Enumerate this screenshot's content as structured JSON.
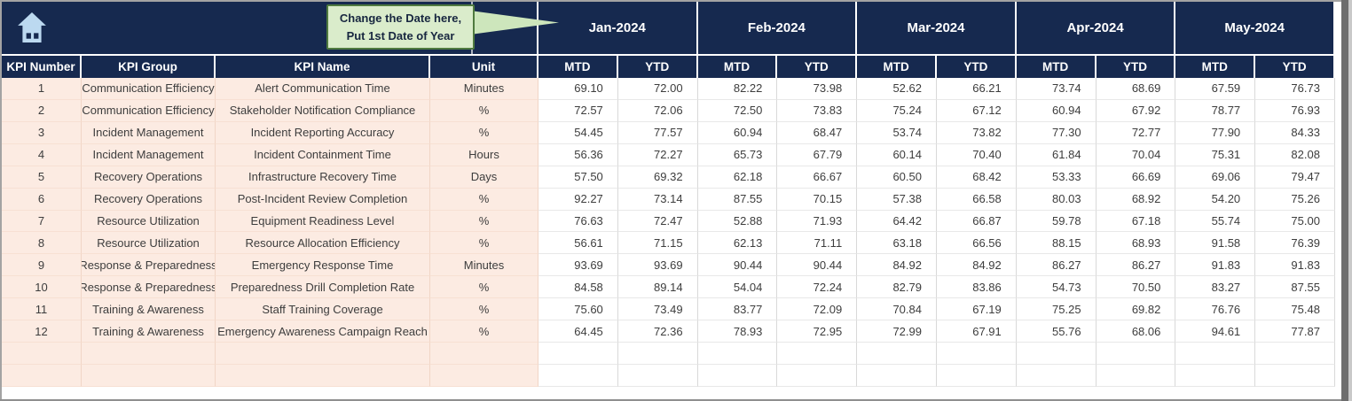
{
  "callout": {
    "line1": "Change the Date here,",
    "line2": "Put 1st Date of Year"
  },
  "months": [
    "Jan-2024",
    "Feb-2024",
    "Mar-2024",
    "Apr-2024",
    "May-2024"
  ],
  "subheaders": {
    "mtd": "MTD",
    "ytd": "YTD"
  },
  "table": {
    "columns": [
      "KPI Number",
      "KPI Group",
      "KPI Name",
      "Unit"
    ],
    "rows": [
      {
        "number": "1",
        "group": "Communication Efficiency",
        "name": "Alert Communication Time",
        "unit": "Minutes",
        "values": [
          [
            "69.10",
            "72.00"
          ],
          [
            "82.22",
            "73.98"
          ],
          [
            "52.62",
            "66.21"
          ],
          [
            "73.74",
            "68.69"
          ],
          [
            "67.59",
            "76.73"
          ]
        ]
      },
      {
        "number": "2",
        "group": "Communication Efficiency",
        "name": "Stakeholder Notification Compliance",
        "unit": "%",
        "values": [
          [
            "72.57",
            "72.06"
          ],
          [
            "72.50",
            "73.83"
          ],
          [
            "75.24",
            "67.12"
          ],
          [
            "60.94",
            "67.92"
          ],
          [
            "78.77",
            "76.93"
          ]
        ]
      },
      {
        "number": "3",
        "group": "Incident Management",
        "name": "Incident Reporting Accuracy",
        "unit": "%",
        "values": [
          [
            "54.45",
            "77.57"
          ],
          [
            "60.94",
            "68.47"
          ],
          [
            "53.74",
            "73.82"
          ],
          [
            "77.30",
            "72.77"
          ],
          [
            "77.90",
            "84.33"
          ]
        ]
      },
      {
        "number": "4",
        "group": "Incident Management",
        "name": "Incident Containment Time",
        "unit": "Hours",
        "values": [
          [
            "56.36",
            "72.27"
          ],
          [
            "65.73",
            "67.79"
          ],
          [
            "60.14",
            "70.40"
          ],
          [
            "61.84",
            "70.04"
          ],
          [
            "75.31",
            "82.08"
          ]
        ]
      },
      {
        "number": "5",
        "group": "Recovery Operations",
        "name": "Infrastructure Recovery Time",
        "unit": "Days",
        "values": [
          [
            "57.50",
            "69.32"
          ],
          [
            "62.18",
            "66.67"
          ],
          [
            "60.50",
            "68.42"
          ],
          [
            "53.33",
            "66.69"
          ],
          [
            "69.06",
            "79.47"
          ]
        ]
      },
      {
        "number": "6",
        "group": "Recovery Operations",
        "name": "Post-Incident Review Completion",
        "unit": "%",
        "values": [
          [
            "92.27",
            "73.14"
          ],
          [
            "87.55",
            "70.15"
          ],
          [
            "57.38",
            "66.58"
          ],
          [
            "80.03",
            "68.92"
          ],
          [
            "54.20",
            "75.26"
          ]
        ]
      },
      {
        "number": "7",
        "group": "Resource Utilization",
        "name": "Equipment Readiness Level",
        "unit": "%",
        "values": [
          [
            "76.63",
            "72.47"
          ],
          [
            "52.88",
            "71.93"
          ],
          [
            "64.42",
            "66.87"
          ],
          [
            "59.78",
            "67.18"
          ],
          [
            "55.74",
            "75.00"
          ]
        ]
      },
      {
        "number": "8",
        "group": "Resource Utilization",
        "name": "Resource Allocation Efficiency",
        "unit": "%",
        "values": [
          [
            "56.61",
            "71.15"
          ],
          [
            "62.13",
            "71.11"
          ],
          [
            "63.18",
            "66.56"
          ],
          [
            "88.15",
            "68.93"
          ],
          [
            "91.58",
            "76.39"
          ]
        ]
      },
      {
        "number": "9",
        "group": "Response & Preparedness",
        "name": "Emergency Response Time",
        "unit": "Minutes",
        "values": [
          [
            "93.69",
            "93.69"
          ],
          [
            "90.44",
            "90.44"
          ],
          [
            "84.92",
            "84.92"
          ],
          [
            "86.27",
            "86.27"
          ],
          [
            "91.83",
            "91.83"
          ]
        ]
      },
      {
        "number": "10",
        "group": "Response & Preparedness",
        "name": "Preparedness Drill Completion Rate",
        "unit": "%",
        "values": [
          [
            "84.58",
            "89.14"
          ],
          [
            "54.04",
            "72.24"
          ],
          [
            "82.79",
            "83.86"
          ],
          [
            "54.73",
            "70.50"
          ],
          [
            "83.27",
            "87.55"
          ]
        ]
      },
      {
        "number": "11",
        "group": "Training & Awareness",
        "name": "Staff Training Coverage",
        "unit": "%",
        "values": [
          [
            "75.60",
            "73.49"
          ],
          [
            "83.77",
            "72.09"
          ],
          [
            "70.84",
            "67.19"
          ],
          [
            "75.25",
            "69.82"
          ],
          [
            "76.76",
            "75.48"
          ]
        ]
      },
      {
        "number": "12",
        "group": "Training & Awareness",
        "name": "Emergency Awareness Campaign Reach",
        "unit": "%",
        "values": [
          [
            "64.45",
            "72.36"
          ],
          [
            "78.93",
            "72.95"
          ],
          [
            "72.99",
            "67.91"
          ],
          [
            "55.76",
            "68.06"
          ],
          [
            "94.61",
            "77.87"
          ]
        ]
      }
    ],
    "empty_rows": 2
  },
  "colors": {
    "header_navy": "#16294f",
    "row_pink": "#fcebe2",
    "callout_green": "#daeccb",
    "callout_border": "#4f7a3f",
    "home_icon_blue": "#bcd9f0"
  }
}
